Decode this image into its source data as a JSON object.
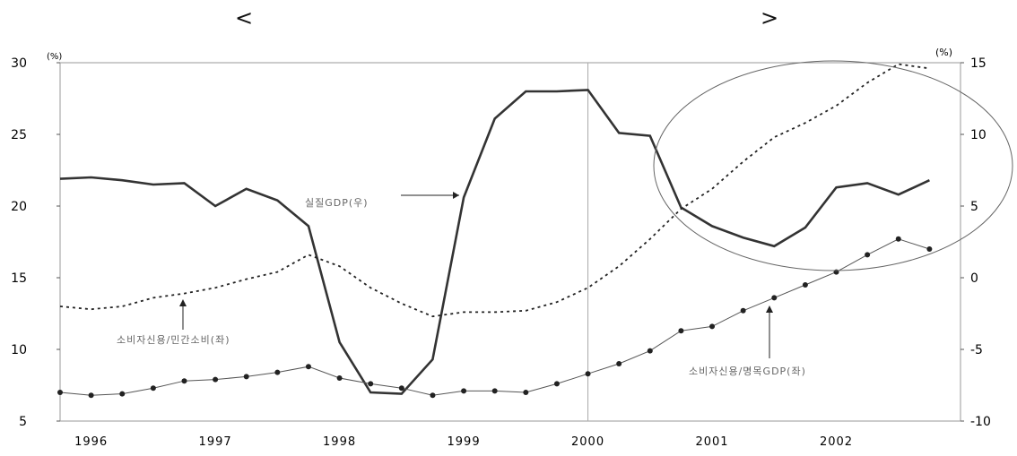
{
  "header": {
    "left_bracket": "<",
    "right_bracket": ">"
  },
  "chart_data": {
    "type": "line",
    "title": "",
    "left_axis": {
      "unit_label": "(%)",
      "ylim": [
        5,
        30
      ],
      "ticks": [
        30,
        25,
        20,
        15,
        10,
        5
      ]
    },
    "right_axis": {
      "unit_label": "(%)",
      "ylim": [
        -10,
        15
      ],
      "ticks": [
        15,
        10,
        5,
        0,
        -5,
        -10
      ]
    },
    "x_axis": {
      "xlim": [
        1995.75,
        2003.0
      ],
      "tick_labels": [
        "1996",
        "1997",
        "1998",
        "1999",
        "2000",
        "2001",
        "2002"
      ],
      "tick_positions": [
        1996,
        1997,
        1998,
        1999,
        2000,
        2001,
        2002
      ]
    },
    "grid": false,
    "vertical_reference_line_x": 2000.0,
    "series": [
      {
        "name": "실질GDP(우)",
        "axis": "right",
        "style": "solid-thick",
        "x": [
          1995.75,
          1996.0,
          1996.25,
          1996.5,
          1996.75,
          1997.0,
          1997.25,
          1997.5,
          1997.75,
          1998.0,
          1998.25,
          1998.5,
          1998.75,
          1999.0,
          1999.25,
          1999.5,
          1999.75,
          2000.0,
          2000.25,
          2000.5,
          2000.75,
          2001.0,
          2001.25,
          2001.5,
          2001.75,
          2002.0,
          2002.25,
          2002.5,
          2002.75
        ],
        "values": [
          6.9,
          7.0,
          6.8,
          6.5,
          6.6,
          5.0,
          6.2,
          5.4,
          3.6,
          -4.5,
          -8.0,
          -8.1,
          -5.7,
          5.6,
          11.1,
          13.0,
          13.0,
          13.1,
          10.1,
          9.9,
          4.9,
          3.6,
          2.8,
          2.2,
          3.5,
          6.3,
          6.6,
          5.8,
          6.8
        ]
      },
      {
        "name": "소비자신용/민간소비(좌)",
        "axis": "left",
        "style": "dotted",
        "x": [
          1995.75,
          1996.0,
          1996.25,
          1996.5,
          1996.75,
          1997.0,
          1997.25,
          1997.5,
          1997.75,
          1998.0,
          1998.25,
          1998.5,
          1998.75,
          1999.0,
          1999.25,
          1999.5,
          1999.75,
          2000.0,
          2000.25,
          2000.5,
          2000.75,
          2001.0,
          2001.25,
          2001.5,
          2001.75,
          2002.0,
          2002.25,
          2002.5,
          2002.75
        ],
        "values": [
          13.0,
          12.8,
          13.0,
          13.6,
          13.9,
          14.3,
          14.9,
          15.4,
          16.6,
          15.8,
          14.3,
          13.2,
          12.3,
          12.6,
          12.6,
          12.7,
          13.3,
          14.3,
          15.8,
          17.7,
          19.8,
          21.2,
          23.1,
          24.8,
          25.8,
          27.0,
          28.6,
          29.9,
          29.6
        ]
      },
      {
        "name": "소비자신용/명목GDP(좌)",
        "axis": "left",
        "style": "solid-thin-markers",
        "x": [
          1995.75,
          1996.0,
          1996.25,
          1996.5,
          1996.75,
          1997.0,
          1997.25,
          1997.5,
          1997.75,
          1998.0,
          1998.25,
          1998.5,
          1998.75,
          1999.0,
          1999.25,
          1999.5,
          1999.75,
          2000.0,
          2000.25,
          2000.5,
          2000.75,
          2001.0,
          2001.25,
          2001.5,
          2001.75,
          2002.0,
          2002.25,
          2002.5,
          2002.75
        ],
        "values": [
          7.0,
          6.8,
          6.9,
          7.3,
          7.8,
          7.9,
          8.1,
          8.4,
          8.8,
          8.0,
          7.6,
          7.3,
          6.8,
          7.1,
          7.1,
          7.0,
          7.6,
          8.3,
          9.0,
          9.9,
          11.3,
          11.6,
          12.7,
          13.6,
          14.5,
          15.4,
          16.6,
          17.7,
          17.0
        ]
      }
    ],
    "annotations": [
      {
        "text": "실질GDP(우)",
        "points_to": "실질GDP(우)"
      },
      {
        "text": "소비자신용/민간소비(좌)",
        "points_to": "소비자신용/민간소비(좌)"
      },
      {
        "text": "소비자신용/명목GDP(좌)",
        "points_to": "소비자신용/명목GDP(좌)"
      }
    ],
    "highlight": {
      "shape": "ellipse",
      "region": "2001-2002"
    }
  }
}
